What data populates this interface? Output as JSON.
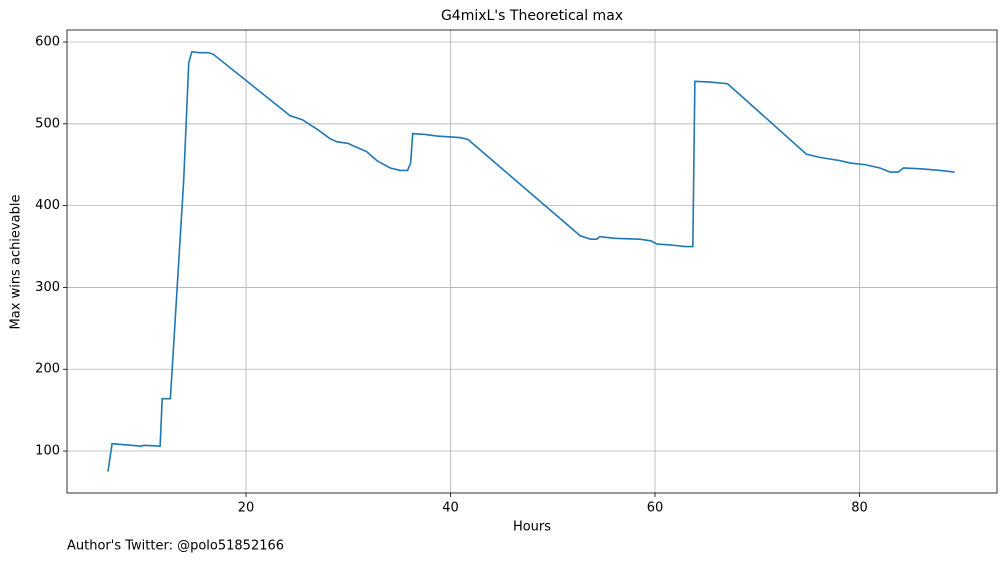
{
  "chart_data": {
    "type": "line",
    "title": "G4mixL's Theoretical max",
    "x_label": "Hours",
    "y_label": "Max wins achievable",
    "footnote": "Author's Twitter: @polo51852166",
    "x": [
      6.5,
      6.9,
      9.7,
      10.0,
      11.6,
      11.8,
      12.6,
      13.9,
      14.4,
      14.7,
      15.5,
      16.3,
      16.8,
      24.3,
      25.5,
      26.5,
      27.0,
      28.2,
      28.9,
      30.0,
      30.5,
      31.8,
      32.8,
      34.1,
      35.1,
      35.8,
      36.1,
      36.3,
      37.5,
      38.7,
      40.0,
      41.0,
      41.7,
      52.7,
      53.7,
      54.3,
      54.6,
      56.1,
      58.5,
      59.6,
      60.2,
      61.5,
      62.9,
      63.7,
      63.9,
      65.4,
      67.1,
      74.8,
      76.1,
      78.1,
      79.1,
      80.6,
      82.0,
      83.0,
      83.8,
      84.3,
      86.0,
      87.9,
      89.3
    ],
    "values": [
      75,
      109,
      106,
      107,
      106,
      164,
      164,
      430,
      575,
      588,
      587,
      587,
      585,
      510,
      505,
      497,
      493,
      482,
      478,
      476,
      473,
      466,
      455,
      446,
      443,
      443,
      452,
      488,
      487,
      485,
      484,
      483,
      481,
      363,
      359,
      359,
      362,
      360,
      359,
      357,
      353,
      352,
      350,
      350,
      552,
      551,
      549,
      463,
      459,
      455,
      452,
      450,
      446,
      441,
      441,
      446,
      445,
      443,
      441
    ],
    "color": "#1f77b4",
    "xlim": [
      2.49,
      93.45
    ],
    "ylim": [
      48.7,
      614.7
    ],
    "xticks": [
      20,
      40,
      60,
      80
    ],
    "yticks": [
      100,
      200,
      300,
      400,
      500,
      600
    ],
    "grid": true
  }
}
